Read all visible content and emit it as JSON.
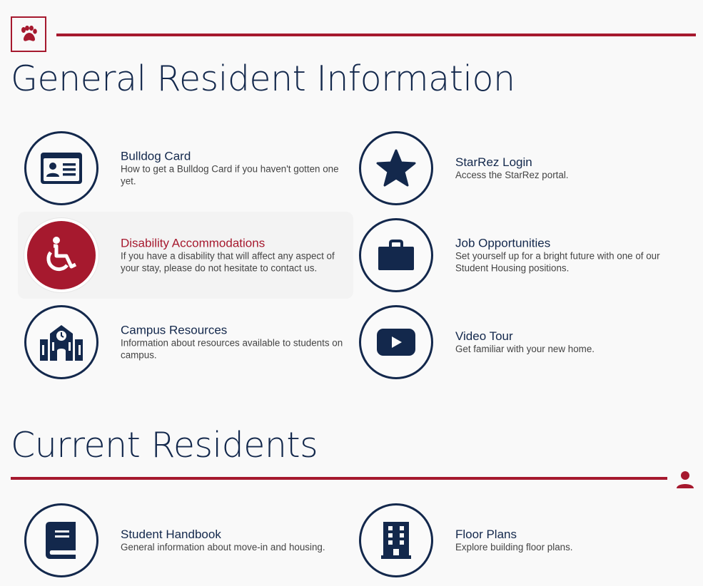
{
  "section1": {
    "title": "General Resident Information",
    "cards": [
      {
        "title": "Bulldog Card",
        "desc": "How to get a Bulldog Card if you haven't gotten one yet.",
        "icon": "id-card-icon"
      },
      {
        "title": "StarRez Login",
        "desc": "Access the StarRez portal.",
        "icon": "star-icon"
      },
      {
        "title": "Disability Accommodations",
        "desc": "If you have a disability that will affect any aspect of your stay, please do not hesitate to contact us.",
        "icon": "wheelchair-icon"
      },
      {
        "title": "Job Opportunities",
        "desc": "Set yourself up for a bright future with one of our Student Housing positions.",
        "icon": "briefcase-icon"
      },
      {
        "title": "Campus Resources",
        "desc": "Information about resources available to students on campus.",
        "icon": "school-icon"
      },
      {
        "title": "Video Tour",
        "desc": "Get familiar with your new home.",
        "icon": "youtube-play-icon"
      }
    ]
  },
  "section2": {
    "title": "Current Residents",
    "cards": [
      {
        "title": "Student Handbook",
        "desc": "General information about move-in and housing.",
        "icon": "book-icon"
      },
      {
        "title": "Floor Plans",
        "desc": "Explore building floor plans.",
        "icon": "building-icon"
      }
    ]
  },
  "colors": {
    "brand_red": "#a6192e",
    "navy": "#13284c",
    "background": "#f9f9f9",
    "hover_bg": "#f3f3f3"
  }
}
